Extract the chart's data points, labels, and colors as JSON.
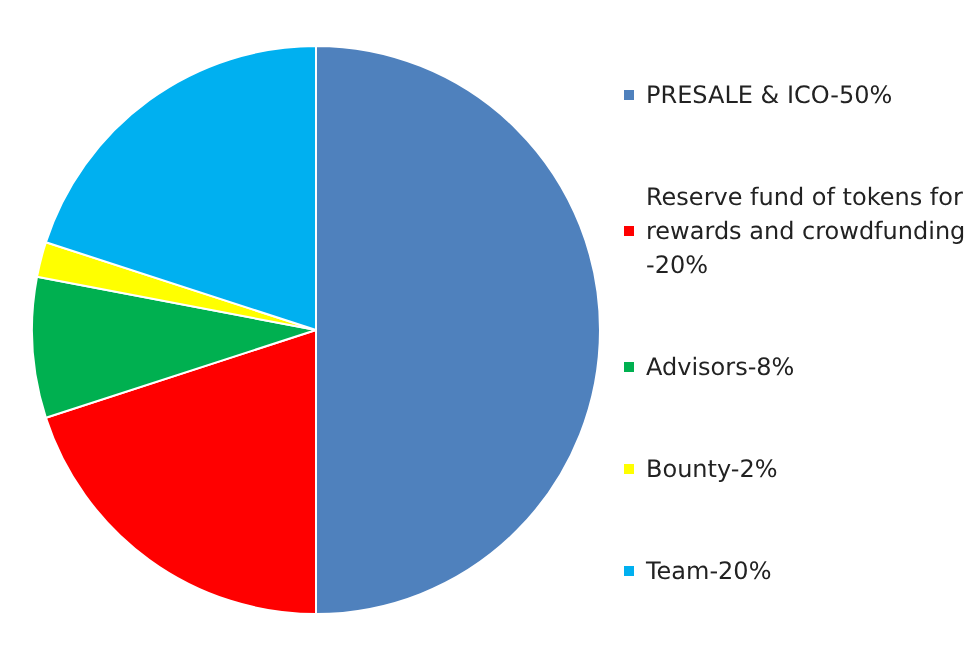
{
  "chart_data": {
    "type": "pie",
    "categories": [
      "PRESALE & ICO-50%",
      "Reserve fund of tokens for rewards and crowdfunding -20%",
      "Advisors-8%",
      "Bounty-2%",
      "Team-20%"
    ],
    "values": [
      50,
      20,
      8,
      2,
      20
    ],
    "colors": [
      "#4f81bd",
      "#ff0000",
      "#00b050",
      "#ffff00",
      "#00b0f0"
    ],
    "legend": "right"
  }
}
